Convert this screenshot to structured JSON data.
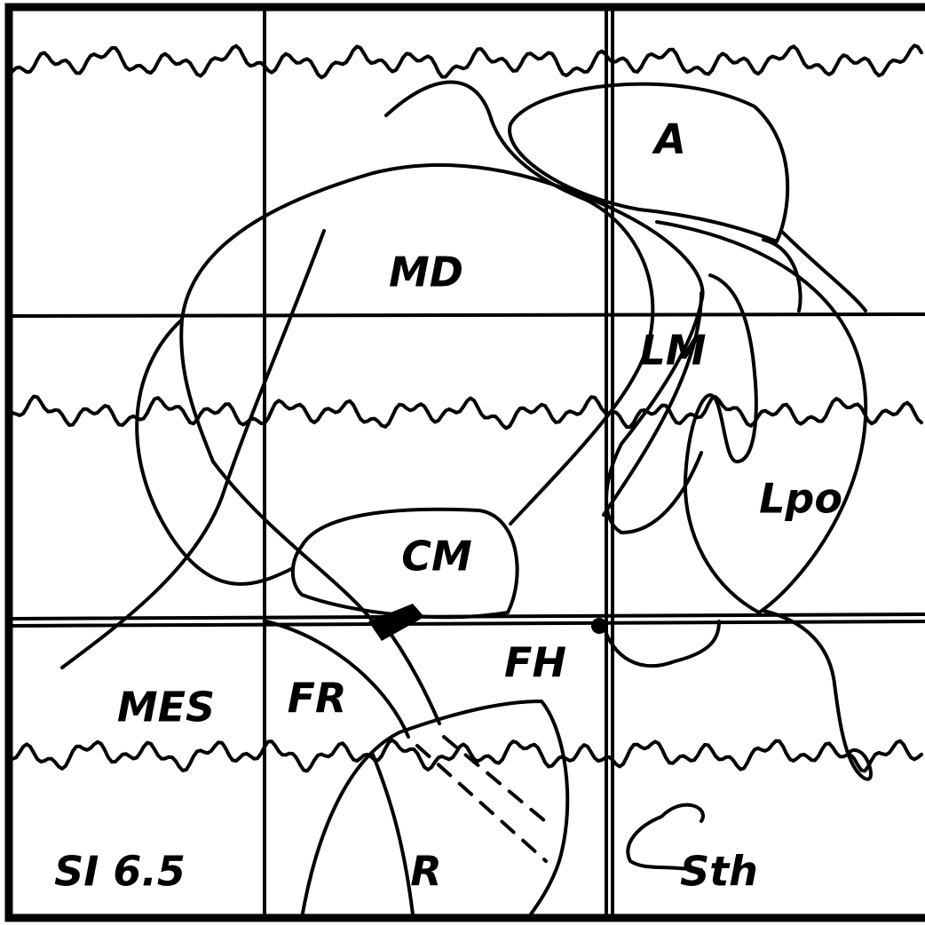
{
  "labels": {
    "a": "A",
    "md": "MD",
    "lm": "LM",
    "lpo": "Lpo",
    "cm": "CM",
    "fh": "FH",
    "fr": "FR",
    "mes": "MES",
    "r": "R",
    "sth": "Sth",
    "section": "SI 6.5"
  }
}
